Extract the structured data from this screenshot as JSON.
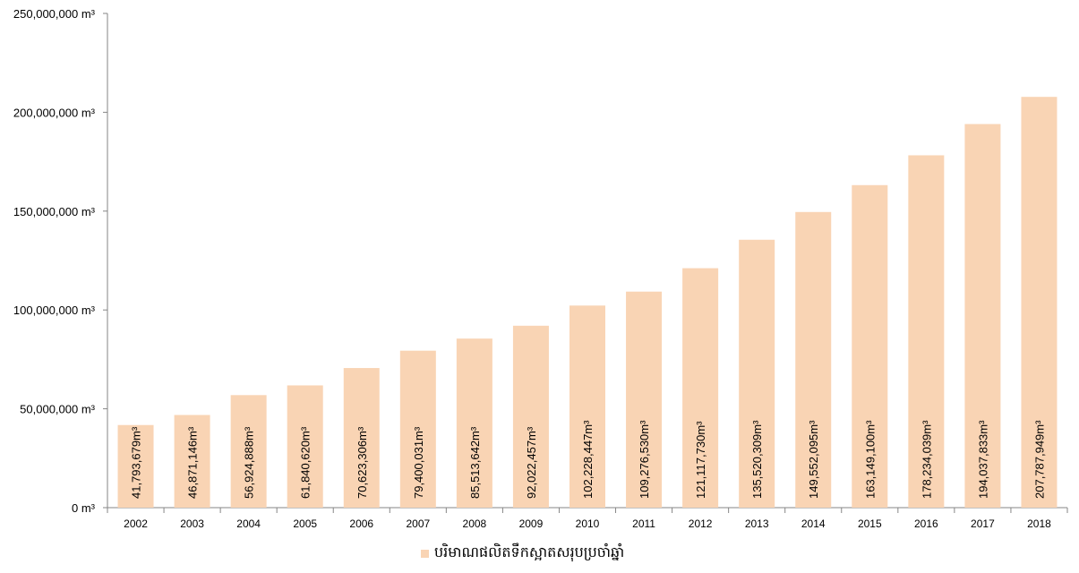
{
  "chart_data": {
    "type": "bar",
    "categories": [
      "2002",
      "2003",
      "2004",
      "2005",
      "2006",
      "2007",
      "2008",
      "2009",
      "2010",
      "2011",
      "2012",
      "2013",
      "2014",
      "2015",
      "2016",
      "2017",
      "2018"
    ],
    "series": [
      {
        "name": "បរិមាណផលិតទឹកស្អាតសរុបប្រចាំឆ្នាំ",
        "values": [
          41793679,
          46871146,
          56924888,
          61840620,
          70623306,
          79400031,
          85513642,
          92022457,
          102228447,
          109276530,
          121117730,
          135520309,
          149552095,
          163149100,
          178234039,
          194037833,
          207787949
        ],
        "labels": [
          "41,793,679m³",
          "46,871,146m³",
          "56,924,888m³",
          "61,840,620m³",
          "70,623,306m³",
          "79,400,031m³",
          "85,513,642m³",
          "92,022,457m³",
          "102,228,447m³",
          "109,276,530m³",
          "121,117,730m³",
          "135,520,309m³",
          "149,552,095m³",
          "163,149,100m³",
          "178,234,039m³",
          "194,037,833m³",
          "207,787,949m³"
        ]
      }
    ],
    "yticks": [
      0,
      50000000,
      100000000,
      150000000,
      200000000,
      250000000
    ],
    "ytick_labels": [
      "0 m³",
      "50,000,000 m³",
      "100,000,000 m³",
      "150,000,000 m³",
      "200,000,000 m³",
      "250,000,000 m³"
    ],
    "ylim": [
      0,
      250000000
    ],
    "grid": false,
    "legend_position": "bottom",
    "bar_color": "#F9D4B4"
  }
}
